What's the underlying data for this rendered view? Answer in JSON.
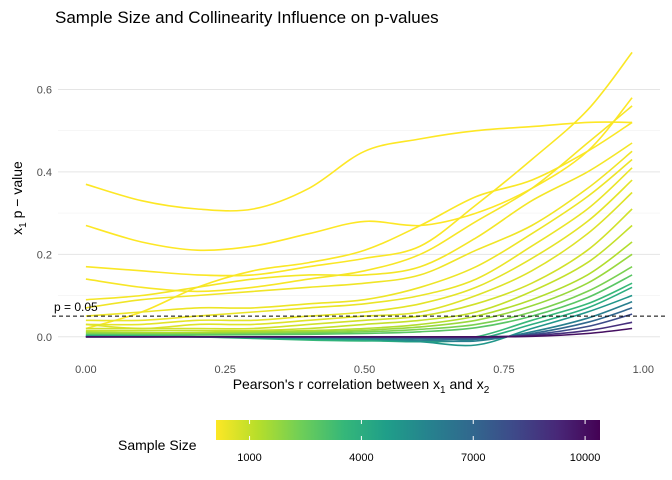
{
  "chart_data": {
    "type": "line",
    "title": "Sample Size and Collinearity Influence on p-values",
    "xlabel": {
      "prefix": "Pearson's r correlation between x",
      "sub1": "1",
      "mid": " and x",
      "sub2": "2"
    },
    "ylabel": {
      "prefix": "x",
      "sub": "1",
      "suffix": " p − value"
    },
    "xlim": [
      -0.05,
      1.03
    ],
    "ylim": [
      -0.02,
      0.72
    ],
    "x_ticks": [
      {
        "value": 0.0,
        "label": "0.00"
      },
      {
        "value": 0.25,
        "label": "0.25"
      },
      {
        "value": 0.5,
        "label": "0.50"
      },
      {
        "value": 0.75,
        "label": "0.75"
      },
      {
        "value": 1.0,
        "label": "1.00"
      }
    ],
    "y_ticks": [
      {
        "value": 0.0,
        "label": "0.0"
      },
      {
        "value": 0.2,
        "label": "0.2"
      },
      {
        "value": 0.4,
        "label": "0.4"
      },
      {
        "value": 0.6,
        "label": "0.6"
      }
    ],
    "x": [
      0.0,
      0.1,
      0.2,
      0.3,
      0.4,
      0.5,
      0.6,
      0.7,
      0.8,
      0.9,
      0.98
    ],
    "series": [
      {
        "n": 100,
        "values": [
          0.37,
          0.33,
          0.31,
          0.31,
          0.36,
          0.45,
          0.48,
          0.5,
          0.51,
          0.52,
          0.52
        ]
      },
      {
        "n": 100,
        "values": [
          0.27,
          0.23,
          0.21,
          0.22,
          0.25,
          0.28,
          0.27,
          0.3,
          0.36,
          0.45,
          0.58
        ]
      },
      {
        "n": 150,
        "values": [
          0.17,
          0.16,
          0.15,
          0.15,
          0.17,
          0.19,
          0.22,
          0.32,
          0.43,
          0.55,
          0.69
        ]
      },
      {
        "n": 150,
        "values": [
          0.02,
          0.06,
          0.12,
          0.16,
          0.18,
          0.21,
          0.27,
          0.34,
          0.38,
          0.45,
          0.52
        ]
      },
      {
        "n": 200,
        "values": [
          0.14,
          0.12,
          0.11,
          0.12,
          0.14,
          0.16,
          0.2,
          0.28,
          0.36,
          0.47,
          0.56
        ]
      },
      {
        "n": 250,
        "values": [
          0.09,
          0.1,
          0.12,
          0.14,
          0.15,
          0.15,
          0.17,
          0.24,
          0.33,
          0.4,
          0.47
        ]
      },
      {
        "n": 300,
        "values": [
          0.07,
          0.09,
          0.1,
          0.11,
          0.12,
          0.13,
          0.15,
          0.21,
          0.27,
          0.36,
          0.45
        ]
      },
      {
        "n": 350,
        "values": [
          0.05,
          0.06,
          0.07,
          0.07,
          0.08,
          0.09,
          0.12,
          0.17,
          0.25,
          0.34,
          0.43
        ]
      },
      {
        "n": 400,
        "values": [
          0.04,
          0.04,
          0.05,
          0.06,
          0.07,
          0.08,
          0.1,
          0.14,
          0.22,
          0.31,
          0.41
        ]
      },
      {
        "n": 500,
        "values": [
          0.03,
          0.03,
          0.04,
          0.04,
          0.05,
          0.06,
          0.08,
          0.12,
          0.19,
          0.28,
          0.38
        ]
      },
      {
        "n": 600,
        "values": [
          0.03,
          0.02,
          0.03,
          0.03,
          0.04,
          0.05,
          0.06,
          0.1,
          0.16,
          0.25,
          0.35
        ]
      },
      {
        "n": 800,
        "values": [
          0.02,
          0.02,
          0.02,
          0.02,
          0.03,
          0.04,
          0.05,
          0.08,
          0.13,
          0.21,
          0.31
        ]
      },
      {
        "n": 1000,
        "values": [
          0.015,
          0.015,
          0.015,
          0.015,
          0.02,
          0.03,
          0.04,
          0.06,
          0.11,
          0.18,
          0.27
        ]
      },
      {
        "n": 1300,
        "values": [
          0.012,
          0.01,
          0.01,
          0.012,
          0.015,
          0.02,
          0.03,
          0.05,
          0.09,
          0.15,
          0.23
        ]
      },
      {
        "n": 1700,
        "values": [
          0.01,
          0.008,
          0.008,
          0.01,
          0.012,
          0.016,
          0.024,
          0.04,
          0.075,
          0.13,
          0.2
        ]
      },
      {
        "n": 2200,
        "values": [
          0.007,
          0.006,
          0.006,
          0.007,
          0.009,
          0.012,
          0.018,
          0.03,
          0.06,
          0.11,
          0.17
        ]
      },
      {
        "n": 2800,
        "values": [
          0.005,
          0.004,
          0.004,
          0.005,
          0.006,
          0.008,
          0.012,
          0.022,
          0.05,
          0.095,
          0.15
        ]
      },
      {
        "n": 3500,
        "values": [
          0.003,
          0.002,
          0.0,
          -0.004,
          -0.008,
          -0.01,
          -0.008,
          0.0,
          0.04,
          0.08,
          0.13
        ]
      },
      {
        "n": 4000,
        "values": [
          0.002,
          0.001,
          0.0,
          -0.003,
          -0.006,
          -0.009,
          -0.012,
          -0.006,
          0.03,
          0.07,
          0.12
        ]
      },
      {
        "n": 5000,
        "values": [
          0.001,
          0.0,
          0.0,
          -0.002,
          -0.004,
          -0.006,
          -0.012,
          -0.02,
          0.02,
          0.06,
          0.1
        ]
      },
      {
        "n": 6000,
        "values": [
          0.0,
          0.0,
          0.0,
          -0.001,
          -0.002,
          -0.004,
          -0.008,
          -0.01,
          0.012,
          0.045,
          0.085
        ]
      },
      {
        "n": 7000,
        "values": [
          0.0,
          0.0,
          0.0,
          0.0,
          -0.001,
          -0.002,
          -0.004,
          -0.006,
          0.008,
          0.035,
          0.07
        ]
      },
      {
        "n": 8000,
        "values": [
          0.0,
          0.0,
          0.0,
          0.0,
          0.0,
          -0.001,
          -0.002,
          -0.003,
          0.005,
          0.025,
          0.055
        ]
      },
      {
        "n": 9000,
        "values": [
          0.0,
          0.0,
          0.0,
          0.0,
          0.0,
          0.0,
          0.0,
          0.0,
          0.003,
          0.015,
          0.035
        ]
      },
      {
        "n": 10000,
        "values": [
          0.0,
          0.0,
          0.0,
          0.0,
          0.0,
          0.0,
          0.0,
          0.0,
          0.001,
          0.008,
          0.02
        ]
      }
    ],
    "reference_line": {
      "y": 0.05,
      "label": "p = 0.05",
      "style": "dashed"
    },
    "grid": true,
    "legend": {
      "title": "Sample Size",
      "position": "bottom",
      "type": "colorbar",
      "range": [
        100,
        10400
      ],
      "ticks": [
        {
          "value": 1000,
          "label": "1000"
        },
        {
          "value": 4000,
          "label": "4000"
        },
        {
          "value": 7000,
          "label": "7000"
        },
        {
          "value": 10000,
          "label": "10000"
        }
      ]
    },
    "colormap": "viridis (reversed: small = yellow, large = purple)",
    "colors": [
      "#fde725",
      "#b5de2b",
      "#6ece58",
      "#35b779",
      "#1f9e89",
      "#26828e",
      "#31688e",
      "#3e4989",
      "#482878",
      "#440154"
    ]
  }
}
